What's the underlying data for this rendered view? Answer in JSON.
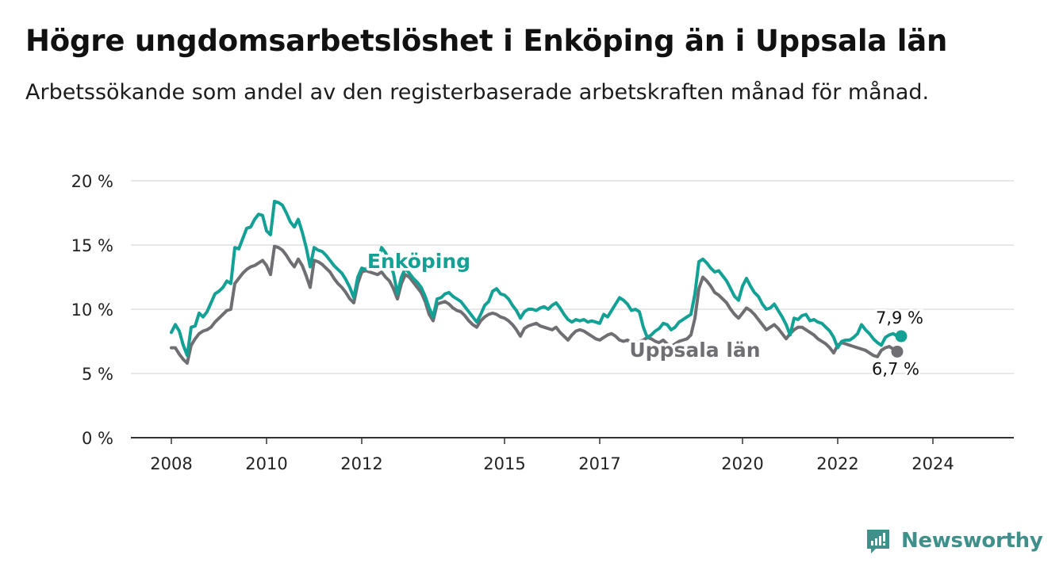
{
  "title": "Högre ungdomsarbetslöshet i Enköping än i Uppsala län",
  "subtitle": "Arbetssökande som andel av den registerbaserade arbetskraften månad för månad.",
  "brand": {
    "name": "Newsworthy",
    "icon": "newsworthy-logo-icon",
    "color": "#3f8f8a"
  },
  "chart_data": {
    "type": "line",
    "y_ticks": [
      "0 %",
      "5 %",
      "10 %",
      "15 %",
      "20 %"
    ],
    "x_ticks": [
      "2008",
      "2010",
      "2012",
      "2015",
      "2017",
      "2020",
      "2022",
      "2024"
    ],
    "ylim": [
      0,
      20
    ],
    "grid": true,
    "series": [
      {
        "name": "Enköping",
        "color": "#13a196",
        "end_label": "7,9 %",
        "start": "2008-01",
        "values": [
          8.2,
          8.8,
          8.3,
          7.2,
          6.4,
          8.6,
          8.7,
          9.7,
          9.4,
          9.8,
          10.5,
          11.2,
          11.4,
          11.7,
          12.2,
          12.0,
          14.8,
          14.7,
          15.5,
          16.3,
          16.4,
          17.0,
          17.4,
          17.3,
          16.1,
          15.8,
          18.4,
          18.3,
          18.1,
          17.5,
          16.8,
          16.4,
          17.0,
          16.0,
          14.8,
          13.3,
          14.8,
          14.6,
          14.5,
          14.2,
          13.8,
          13.4,
          13.1,
          12.8,
          12.3,
          11.7,
          10.9,
          12.5,
          13.2,
          13.1,
          13.4,
          13.5,
          13.6,
          14.8,
          14.4,
          13.7,
          12.8,
          11.2,
          12.5,
          13.2,
          12.8,
          12.4,
          12.1,
          11.7,
          11.0,
          10.1,
          9.4,
          10.8,
          10.9,
          11.2,
          11.3,
          11.0,
          10.8,
          10.6,
          10.2,
          9.8,
          9.4,
          9.0,
          9.6,
          10.3,
          10.6,
          11.4,
          11.6,
          11.2,
          11.1,
          10.8,
          10.3,
          9.9,
          9.3,
          9.8,
          10.0,
          10.0,
          9.9,
          10.1,
          10.2,
          10.0,
          10.3,
          10.5,
          10.1,
          9.6,
          9.2,
          9.0,
          9.2,
          9.1,
          9.2,
          9.0,
          9.1,
          9.0,
          8.9,
          9.6,
          9.4,
          9.9,
          10.4,
          10.9,
          10.7,
          10.4,
          9.9,
          10.0,
          9.8,
          8.6,
          7.8,
          8.0,
          8.3,
          8.5,
          8.9,
          8.8,
          8.4,
          8.6,
          9.0,
          9.2,
          9.4,
          9.6,
          11.2,
          13.7,
          13.9,
          13.6,
          13.2,
          12.9,
          13.0,
          12.6,
          12.2,
          11.6,
          11.0,
          10.7,
          11.8,
          12.4,
          11.8,
          11.3,
          11.0,
          10.4,
          10.0,
          10.1,
          10.4,
          9.9,
          9.4,
          8.8,
          8.0,
          9.3,
          9.2,
          9.5,
          9.6,
          9.1,
          9.2,
          9.0,
          8.9,
          8.6,
          8.3,
          7.8,
          7.0,
          7.5,
          7.6,
          7.6,
          7.8,
          8.1,
          8.8,
          8.4,
          8.1,
          7.7,
          7.4,
          7.2,
          7.8,
          8.0,
          8.1,
          7.9,
          7.9
        ]
      },
      {
        "name": "Uppsala län",
        "color": "#6e6e73",
        "end_label": "6,7 %",
        "start": "2008-01",
        "values": [
          7.0,
          7.0,
          6.5,
          6.1,
          5.8,
          7.2,
          7.7,
          8.1,
          8.3,
          8.4,
          8.6,
          9.0,
          9.3,
          9.6,
          9.9,
          10.0,
          12.0,
          12.4,
          12.8,
          13.1,
          13.3,
          13.4,
          13.6,
          13.8,
          13.4,
          12.7,
          14.9,
          14.8,
          14.6,
          14.2,
          13.7,
          13.3,
          13.9,
          13.4,
          12.6,
          11.7,
          13.8,
          13.7,
          13.5,
          13.2,
          12.9,
          12.4,
          12.0,
          11.7,
          11.3,
          10.8,
          10.5,
          12.0,
          12.9,
          13.0,
          12.9,
          12.8,
          12.7,
          12.9,
          12.5,
          12.2,
          11.6,
          10.8,
          12.0,
          12.7,
          12.5,
          12.1,
          11.7,
          11.3,
          10.6,
          9.6,
          9.1,
          10.4,
          10.5,
          10.6,
          10.4,
          10.1,
          9.9,
          9.8,
          9.5,
          9.1,
          8.8,
          8.6,
          9.1,
          9.4,
          9.6,
          9.7,
          9.6,
          9.4,
          9.3,
          9.1,
          8.8,
          8.4,
          7.9,
          8.5,
          8.7,
          8.8,
          8.9,
          8.7,
          8.6,
          8.5,
          8.4,
          8.6,
          8.2,
          7.9,
          7.6,
          8.0,
          8.3,
          8.4,
          8.3,
          8.1,
          7.9,
          7.7,
          7.6,
          7.8,
          8.0,
          8.1,
          7.9,
          7.6,
          7.5,
          7.6,
          7.4,
          7.3,
          7.5,
          7.6,
          7.8,
          7.7,
          7.5,
          7.4,
          7.6,
          7.3,
          7.1,
          7.3,
          7.5,
          7.6,
          7.7,
          8.0,
          9.3,
          11.6,
          12.5,
          12.2,
          11.8,
          11.3,
          11.1,
          10.8,
          10.5,
          10.0,
          9.6,
          9.3,
          9.7,
          10.1,
          9.9,
          9.6,
          9.2,
          8.8,
          8.4,
          8.6,
          8.8,
          8.5,
          8.1,
          7.7,
          8.1,
          8.4,
          8.6,
          8.6,
          8.4,
          8.2,
          8.0,
          7.7,
          7.5,
          7.3,
          7.0,
          6.6,
          7.2,
          7.4,
          7.3,
          7.2,
          7.1,
          7.0,
          6.9,
          6.8,
          6.6,
          6.4,
          6.3,
          6.8,
          7.0,
          7.1,
          6.9,
          6.7
        ]
      }
    ]
  }
}
